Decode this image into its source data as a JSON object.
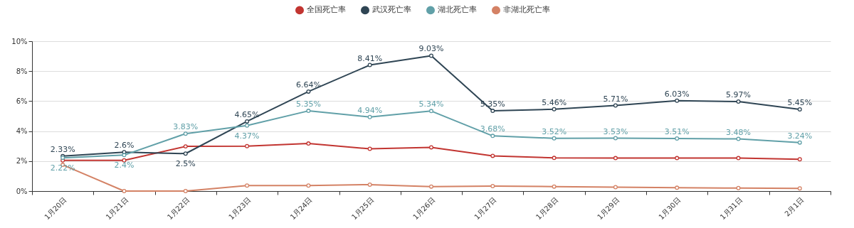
{
  "chart_data": {
    "type": "line",
    "categories": [
      "1月20日",
      "1月21日",
      "1月22日",
      "1月23日",
      "1月24日",
      "1月25日",
      "1月26日",
      "1月27日",
      "1月28日",
      "1月29日",
      "1月30日",
      "1月31日",
      "2月1日"
    ],
    "series": [
      {
        "name": "全国死亡率",
        "color": "#c23531",
        "values": [
          2.05,
          2.05,
          2.98,
          3.0,
          3.17,
          2.82,
          2.92,
          2.35,
          2.21,
          2.2,
          2.2,
          2.2,
          2.12
        ]
      },
      {
        "name": "武汉死亡率",
        "color": "#2f4554",
        "values": [
          2.33,
          2.6,
          2.5,
          4.65,
          6.64,
          8.41,
          9.03,
          5.35,
          5.46,
          5.71,
          6.03,
          5.97,
          5.45
        ],
        "value_labels": [
          "2.33%",
          "2.6%",
          "2.5%",
          "4.65%",
          "6.64%",
          "8.41%",
          "9.03%",
          "5.35%",
          "5.46%",
          "5.71%",
          "6.03%",
          "5.97%",
          "5.45%"
        ]
      },
      {
        "name": "湖北死亡率",
        "color": "#61a0a8",
        "values": [
          2.22,
          2.4,
          3.83,
          4.37,
          5.35,
          4.94,
          5.34,
          3.68,
          3.52,
          3.53,
          3.51,
          3.48,
          3.24
        ],
        "value_labels": [
          "2.22%",
          "2.4%",
          "3.83%",
          "4.37%",
          "5.35%",
          "4.94%",
          "5.34%",
          "3.68%",
          "3.52%",
          "3.53%",
          "3.51%",
          "3.48%",
          "3.24%"
        ]
      },
      {
        "name": "非湖北死亡率",
        "color": "#d48265",
        "values": [
          1.75,
          0,
          0,
          0.37,
          0.37,
          0.43,
          0.3,
          0.33,
          0.3,
          0.26,
          0.22,
          0.2,
          0.18
        ]
      }
    ],
    "ylim": [
      0,
      10
    ],
    "yticks": [
      {
        "value": 0,
        "label": "0%"
      },
      {
        "value": 2,
        "label": "2%"
      },
      {
        "value": 4,
        "label": "4%"
      },
      {
        "value": 6,
        "label": "6%"
      },
      {
        "value": 8,
        "label": "8%"
      },
      {
        "value": 10,
        "label": "10%"
      }
    ],
    "grid": "y",
    "legend": "top",
    "marker": "circle",
    "line_style": "solid"
  }
}
